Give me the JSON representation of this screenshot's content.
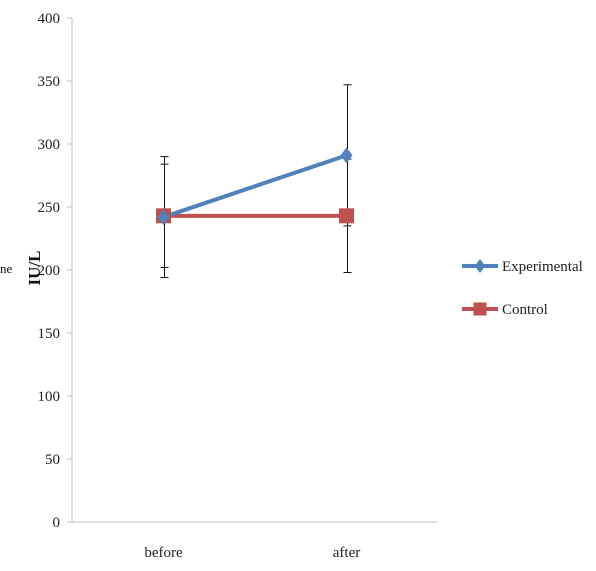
{
  "chart_data": {
    "type": "line",
    "title": "",
    "xlabel": "",
    "ylabel": "IU/L",
    "ylabel_prefix_fragment": "ne",
    "categories": [
      "before",
      "after"
    ],
    "ylim": [
      0,
      400
    ],
    "yticks": [
      0,
      50,
      100,
      150,
      200,
      250,
      300,
      350,
      400
    ],
    "grid": false,
    "legend_position": "right",
    "series": [
      {
        "name": "Experimental",
        "values": [
          242,
          291
        ],
        "error": [
          48,
          56
        ],
        "color": "#4F81BD",
        "marker": "diamond"
      },
      {
        "name": "Control",
        "values": [
          243,
          243
        ],
        "error": [
          41,
          45
        ],
        "color": "#C0504D",
        "marker": "square"
      }
    ]
  }
}
